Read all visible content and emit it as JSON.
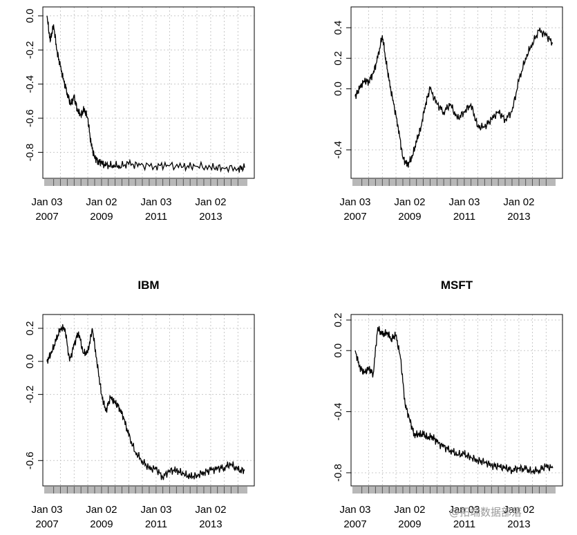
{
  "watermark": "@拓端数据部落",
  "chart_data": [
    {
      "type": "line",
      "title": "",
      "xlabel": "",
      "ylabel": "",
      "x_tick_labels": [
        "Jan 03\n2007",
        "Jan 02\n2009",
        "Jan 03\n2011",
        "Jan 02\n2013"
      ],
      "y_ticks": [
        -0.8,
        -0.6,
        -0.4,
        -0.2,
        0.0
      ],
      "ylim": [
        -0.92,
        0.02
      ],
      "grid": true,
      "series": [
        {
          "x": [
            "2007-01-03",
            "2007-02-15",
            "2007-04-01",
            "2007-05-15",
            "2007-07-01",
            "2007-08-15",
            "2007-10-01",
            "2007-11-15",
            "2008-01-01",
            "2008-02-15",
            "2008-04-01",
            "2008-05-15",
            "2008-07-01",
            "2008-08-15",
            "2008-10-01",
            "2008-11-15",
            "2009-01-01",
            "2009-03-01",
            "2009-06-01",
            "2009-09-01",
            "2010-01-01",
            "2010-06-01",
            "2011-01-01",
            "2011-06-01",
            "2012-01-01",
            "2012-06-01",
            "2013-01-01",
            "2013-06-01",
            "2014-01-01",
            "2014-04-01"
          ],
          "values": [
            0.0,
            -0.15,
            -0.05,
            -0.2,
            -0.3,
            -0.38,
            -0.45,
            -0.52,
            -0.48,
            -0.55,
            -0.58,
            -0.55,
            -0.6,
            -0.75,
            -0.83,
            -0.85,
            -0.86,
            -0.88,
            -0.875,
            -0.88,
            -0.87,
            -0.875,
            -0.88,
            -0.875,
            -0.885,
            -0.88,
            -0.89,
            -0.89,
            -0.895,
            -0.89
          ]
        }
      ]
    },
    {
      "type": "line",
      "title": "",
      "xlabel": "",
      "ylabel": "",
      "x_tick_labels": [
        "Jan 03\n2007",
        "Jan 02\n2009",
        "Jan 03\n2011",
        "Jan 02\n2013"
      ],
      "y_ticks": [
        -0.4,
        0.0,
        0.2,
        0.4
      ],
      "ylim": [
        -0.55,
        0.5
      ],
      "grid": true,
      "series": [
        {
          "x": [
            "2007-01-03",
            "2007-03-01",
            "2007-05-01",
            "2007-07-01",
            "2007-09-01",
            "2007-11-01",
            "2008-01-01",
            "2008-02-15",
            "2008-04-01",
            "2008-06-01",
            "2008-08-01",
            "2008-10-01",
            "2008-12-01",
            "2009-02-01",
            "2009-04-01",
            "2009-06-01",
            "2009-08-01",
            "2009-10-01",
            "2010-01-01",
            "2010-04-01",
            "2010-07-01",
            "2010-10-01",
            "2011-01-01",
            "2011-04-01",
            "2011-07-01",
            "2011-10-01",
            "2012-01-01",
            "2012-04-01",
            "2012-07-01",
            "2012-10-01",
            "2013-01-01",
            "2013-04-01",
            "2013-07-01",
            "2013-10-01",
            "2014-01-01",
            "2014-04-01"
          ],
          "values": [
            -0.05,
            0.0,
            0.05,
            0.05,
            0.1,
            0.2,
            0.35,
            0.2,
            0.05,
            -0.1,
            -0.25,
            -0.45,
            -0.5,
            -0.45,
            -0.35,
            -0.25,
            -0.1,
            0.0,
            -0.1,
            -0.15,
            -0.1,
            -0.2,
            -0.15,
            -0.1,
            -0.25,
            -0.25,
            -0.2,
            -0.15,
            -0.2,
            -0.15,
            0.05,
            0.2,
            0.3,
            0.38,
            0.35,
            0.3
          ]
        }
      ]
    },
    {
      "type": "line",
      "title": "IBM",
      "xlabel": "",
      "ylabel": "",
      "x_tick_labels": [
        "Jan 03\n2007",
        "Jan 02\n2009",
        "Jan 03\n2011",
        "Jan 02\n2013"
      ],
      "y_ticks": [
        -0.6,
        -0.2,
        0.0,
        0.2
      ],
      "ylim": [
        -0.72,
        0.25
      ],
      "grid": true,
      "series": [
        {
          "x": [
            "2007-01-03",
            "2007-03-01",
            "2007-05-01",
            "2007-07-01",
            "2007-09-01",
            "2007-11-01",
            "2008-01-01",
            "2008-03-01",
            "2008-05-01",
            "2008-07-01",
            "2008-09-01",
            "2008-11-01",
            "2009-01-01",
            "2009-03-01",
            "2009-05-01",
            "2009-07-01",
            "2009-09-01",
            "2009-11-01",
            "2010-01-01",
            "2010-04-01",
            "2010-07-01",
            "2010-10-01",
            "2011-01-01",
            "2011-04-01",
            "2011-07-01",
            "2011-10-01",
            "2012-01-01",
            "2012-04-01",
            "2012-07-01",
            "2012-10-01",
            "2013-01-01",
            "2013-04-01",
            "2013-07-01",
            "2013-10-01",
            "2014-01-01",
            "2014-04-01"
          ],
          "values": [
            0.0,
            0.05,
            0.12,
            0.2,
            0.2,
            0.0,
            0.1,
            0.18,
            0.05,
            0.05,
            0.2,
            0.0,
            -0.2,
            -0.3,
            -0.22,
            -0.25,
            -0.28,
            -0.35,
            -0.45,
            -0.55,
            -0.6,
            -0.65,
            -0.65,
            -0.7,
            -0.66,
            -0.66,
            -0.68,
            -0.7,
            -0.69,
            -0.67,
            -0.66,
            -0.65,
            -0.64,
            -0.62,
            -0.66,
            -0.66
          ]
        }
      ]
    },
    {
      "type": "line",
      "title": "MSFT",
      "xlabel": "",
      "ylabel": "",
      "x_tick_labels": [
        "Jan 03\n2007",
        "Jan 02\n2009",
        "Jan 03\n2011",
        "Jan 02\n2013"
      ],
      "y_ticks": [
        -0.8,
        -0.4,
        0.0,
        0.2
      ],
      "ylim": [
        -0.85,
        0.2
      ],
      "grid": true,
      "series": [
        {
          "x": [
            "2007-01-03",
            "2007-03-01",
            "2007-05-01",
            "2007-07-01",
            "2007-09-01",
            "2007-11-01",
            "2008-01-01",
            "2008-03-01",
            "2008-05-01",
            "2008-07-01",
            "2008-09-01",
            "2008-11-01",
            "2009-01-01",
            "2009-03-01",
            "2009-05-01",
            "2009-07-01",
            "2009-09-01",
            "2009-11-01",
            "2010-01-01",
            "2010-04-01",
            "2010-07-01",
            "2010-10-01",
            "2011-01-01",
            "2011-04-01",
            "2011-07-01",
            "2011-10-01",
            "2012-01-01",
            "2012-04-01",
            "2012-07-01",
            "2012-10-01",
            "2013-01-01",
            "2013-04-01",
            "2013-07-01",
            "2013-10-01",
            "2014-01-01",
            "2014-04-01"
          ],
          "values": [
            0.0,
            -0.1,
            -0.15,
            -0.12,
            -0.15,
            0.15,
            0.1,
            0.12,
            0.08,
            0.1,
            -0.05,
            -0.35,
            -0.45,
            -0.55,
            -0.55,
            -0.55,
            -0.57,
            -0.56,
            -0.6,
            -0.63,
            -0.65,
            -0.68,
            -0.68,
            -0.7,
            -0.72,
            -0.73,
            -0.75,
            -0.76,
            -0.77,
            -0.78,
            -0.77,
            -0.78,
            -0.79,
            -0.78,
            -0.76,
            -0.77
          ]
        }
      ]
    }
  ]
}
